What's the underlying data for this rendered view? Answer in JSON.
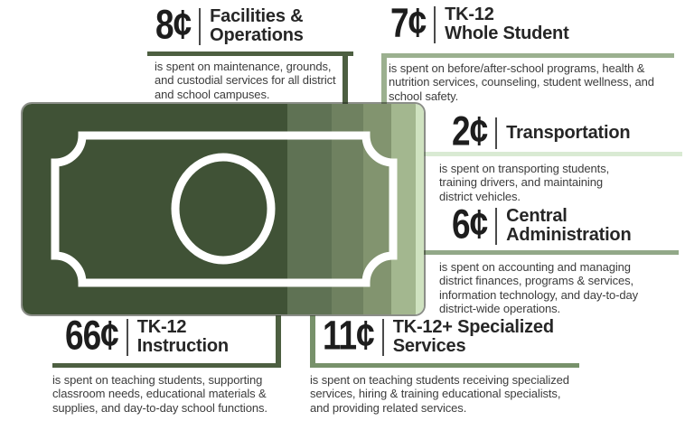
{
  "background_color": "#ffffff",
  "bill": {
    "icon": "dollar-bill-icon",
    "frame_color": "#ffffff",
    "outline_color": "#2c3226",
    "segments": [
      {
        "label": "TK-12 Instruction",
        "cents": 66,
        "color": "#405236",
        "width_pct": 66
      },
      {
        "label": "TK-12+ Specialized Services",
        "cents": 11,
        "color": "#5f7254",
        "width_pct": 11
      },
      {
        "label": "Facilities & Operations",
        "cents": 8,
        "color": "#6f8160",
        "width_pct": 8
      },
      {
        "label": "TK-12 Whole Student",
        "cents": 7,
        "color": "#82946f",
        "width_pct": 7
      },
      {
        "label": "Central Administration",
        "cents": 6,
        "color": "#a3b78f",
        "width_pct": 6
      },
      {
        "label": "Transportation",
        "cents": 2,
        "color": "#cfe2c0",
        "width_pct": 2
      }
    ]
  },
  "callouts": [
    {
      "id": "facilities-operations",
      "amount": "8¢",
      "title": "Facilities &\nOperations",
      "body": "is spent on maintenance, grounds,\nand custodial services for all district\nand school campuses.",
      "line_color": "#4d5f41"
    },
    {
      "id": "whole-student",
      "amount": "7¢",
      "title": "TK-12\nWhole Student",
      "body": "is spent on before/after-school programs, health &\nnutrition services, counseling, student wellness, and\nschool safety.",
      "line_color": "#9bb08f"
    },
    {
      "id": "transportation",
      "amount": "2¢",
      "title": "Transportation",
      "body": "is spent on transporting students,\ntraining drivers, and maintaining\ndistrict vehicles.",
      "line_color": "#d9ead3"
    },
    {
      "id": "central-administration",
      "amount": "6¢",
      "title": "Central\nAdministration",
      "body": "is spent on accounting and managing\ndistrict finances, programs & services,\ninformation technology, and day-to-day\ndistrict-wide operations.",
      "line_color": "#92a888"
    },
    {
      "id": "tk12-instruction",
      "amount": "66¢",
      "title": "TK-12\nInstruction",
      "body": "is spent on teaching students, supporting\nclassroom needs, educational materials &\nsupplies, and day-to-day school functions.",
      "line_color": "#4d5f41"
    },
    {
      "id": "specialized-services",
      "amount": "11¢",
      "title": "TK-12+ Specialized\nServices",
      "body": "is spent on teaching students receiving specialized\nservices, hiring & training educational specialists,\nand providing related services.",
      "line_color": "#77916a"
    }
  ],
  "chart_data": {
    "type": "bar",
    "title": "",
    "categories": [
      "TK-12 Instruction",
      "TK-12+ Specialized Services",
      "Facilities & Operations",
      "TK-12 Whole Student",
      "Central Administration",
      "Transportation"
    ],
    "values": [
      66,
      11,
      8,
      7,
      6,
      2
    ],
    "unit": "¢",
    "total": 100,
    "layout_hint": "single stacked horizontal bar rendered as a dollar-bill illustration; segments left-to-right in listed order; callout labels connected by colored rule lines"
  }
}
